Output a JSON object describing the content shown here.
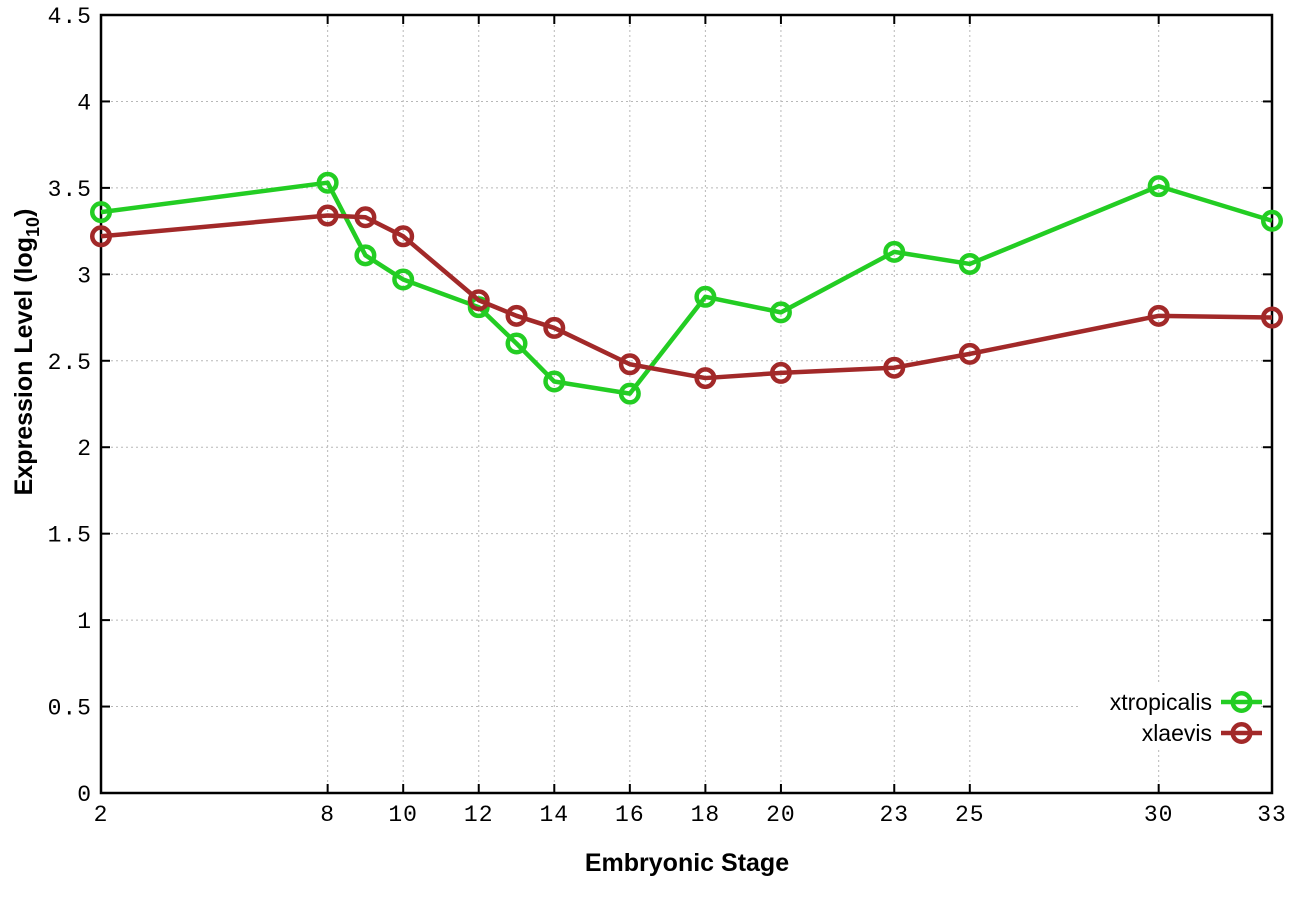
{
  "figure": {
    "background": "#ffffff",
    "xlabel": "Embryonic Stage",
    "ylabel_prefix": "Expression Level (log",
    "ylabel_sub": "10",
    "ylabel_suffix": ")"
  },
  "chart_data": {
    "type": "line",
    "title": "",
    "xlabel": "Embryonic Stage",
    "ylabel": "Expression Level (log10)",
    "x": [
      2,
      8,
      9,
      10,
      12,
      13,
      14,
      16,
      18,
      20,
      23,
      25,
      30,
      33
    ],
    "series": [
      {
        "name": "xtropicalis",
        "color": "#23cd23",
        "values": [
          3.36,
          3.53,
          3.11,
          2.97,
          2.81,
          2.6,
          2.38,
          2.31,
          2.87,
          2.78,
          3.13,
          3.06,
          3.51,
          3.31
        ]
      },
      {
        "name": "xlaevis",
        "color": "#a22929",
        "values": [
          3.22,
          3.34,
          3.33,
          3.22,
          2.85,
          2.76,
          2.69,
          2.48,
          2.4,
          2.43,
          2.46,
          2.54,
          2.76,
          2.75
        ]
      }
    ],
    "x_ticks": [
      2,
      8,
      10,
      12,
      14,
      16,
      18,
      20,
      23,
      25,
      30,
      33
    ],
    "x_tick_labels": [
      "2",
      "8",
      "10",
      "12",
      "14",
      "16",
      "18",
      "20",
      "23",
      "25",
      "30",
      "33"
    ],
    "y_ticks": [
      0,
      0.5,
      1,
      1.5,
      2,
      2.5,
      3,
      3.5,
      4,
      4.5
    ],
    "y_tick_labels": [
      "0",
      "0.5",
      "1",
      "1.5",
      "2",
      "2.5",
      "3",
      "3.5",
      "4",
      "4.5"
    ],
    "xlim": [
      2,
      33
    ],
    "ylim": [
      0,
      4.5
    ],
    "grid": true,
    "grid_color": "#b8b8b8",
    "border_color": "#000000",
    "legend_position": "bottom-right",
    "marker": "open-circle"
  }
}
